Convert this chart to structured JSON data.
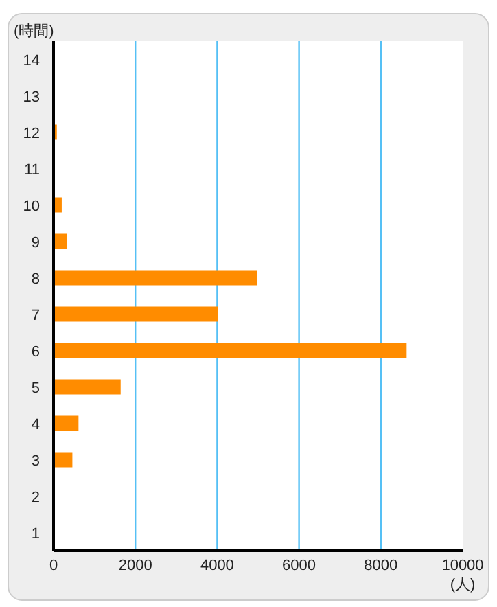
{
  "chart_data": {
    "type": "bar",
    "orientation": "horizontal",
    "ylabel": "(時間)",
    "xlabel": "(人)",
    "categories": [
      "14",
      "13",
      "12",
      "11",
      "10",
      "9",
      "8",
      "7",
      "6",
      "5",
      "4",
      "3",
      "2",
      "1"
    ],
    "values": [
      0,
      0,
      80,
      0,
      200,
      330,
      4980,
      4020,
      8630,
      1640,
      610,
      460,
      0,
      0
    ],
    "color": "#ff8c00",
    "xlim": [
      0,
      10000
    ],
    "xticks": [
      0,
      2000,
      4000,
      6000,
      8000,
      10000
    ],
    "grid": "x"
  }
}
